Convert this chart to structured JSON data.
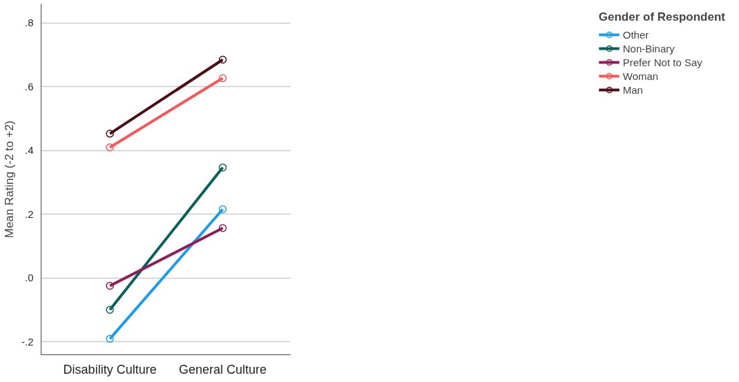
{
  "chart_data": {
    "type": "line",
    "ylabel": "Mean Rating (-2 to +2)",
    "legend_title": "Gender of Respondent",
    "categories": [
      "Disability Culture",
      "General Culture"
    ],
    "series": [
      {
        "name": "Other",
        "color": "#1f9be8",
        "values": [
          -0.19,
          0.216
        ]
      },
      {
        "name": "Non-Binary",
        "color": "#0a5f5a",
        "values": [
          -0.099,
          0.347
        ]
      },
      {
        "name": "Prefer Not to Say",
        "color": "#8e1c5a",
        "values": [
          -0.024,
          0.157
        ]
      },
      {
        "name": "Woman",
        "color": "#f5585a",
        "values": [
          0.41,
          0.627
        ]
      },
      {
        "name": "Man",
        "color": "#4a0e12",
        "values": [
          0.453,
          0.685
        ]
      }
    ],
    "ylim": [
      -0.24,
      0.86
    ],
    "yticks": [
      {
        "value": -0.2,
        "label": "-.2"
      },
      {
        "value": 0.0,
        "label": ".0"
      },
      {
        "value": 0.2,
        "label": ".2"
      },
      {
        "value": 0.4,
        "label": ".4"
      },
      {
        "value": 0.6,
        "label": ".6"
      },
      {
        "value": 0.8,
        "label": ".8"
      }
    ],
    "grid": "y",
    "legend": "top right",
    "marker": "circle",
    "line_style": "solid"
  }
}
